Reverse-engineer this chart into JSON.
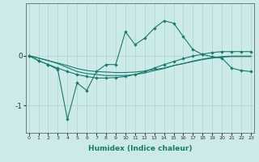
{
  "xlabel": "Humidex (Indice chaleur)",
  "background_color": "#cceae8",
  "line_color": "#1a7a6e",
  "grid_color": "#aad4d0",
  "x_values": [
    0,
    1,
    2,
    3,
    4,
    5,
    6,
    7,
    8,
    9,
    10,
    11,
    12,
    13,
    14,
    15,
    16,
    17,
    18,
    19,
    20,
    21,
    22,
    23
  ],
  "line1_y": [
    0.0,
    -0.1,
    -0.18,
    -0.28,
    -1.28,
    -0.55,
    -0.7,
    -0.32,
    -0.18,
    -0.18,
    0.48,
    0.22,
    0.35,
    0.55,
    0.7,
    0.65,
    0.38,
    0.12,
    0.02,
    -0.02,
    -0.05,
    -0.25,
    -0.3,
    -0.32
  ],
  "line2_y": [
    0.0,
    -0.1,
    -0.18,
    -0.25,
    -0.32,
    -0.38,
    -0.42,
    -0.45,
    -0.45,
    -0.44,
    -0.42,
    -0.38,
    -0.32,
    -0.25,
    -0.18,
    -0.12,
    -0.06,
    -0.01,
    0.03,
    0.06,
    0.08,
    0.08,
    0.08,
    0.08
  ],
  "line3_y": [
    0.0,
    -0.05,
    -0.1,
    -0.15,
    -0.2,
    -0.26,
    -0.3,
    -0.32,
    -0.33,
    -0.34,
    -0.34,
    -0.33,
    -0.31,
    -0.28,
    -0.25,
    -0.2,
    -0.16,
    -0.12,
    -0.08,
    -0.05,
    -0.03,
    -0.02,
    -0.02,
    -0.02
  ],
  "line4_y": [
    0.0,
    -0.05,
    -0.1,
    -0.16,
    -0.24,
    -0.32,
    -0.36,
    -0.38,
    -0.4,
    -0.4,
    -0.4,
    -0.38,
    -0.35,
    -0.3,
    -0.26,
    -0.2,
    -0.16,
    -0.11,
    -0.07,
    -0.04,
    -0.02,
    -0.01,
    -0.01,
    -0.01
  ],
  "ylim": [
    -1.55,
    1.05
  ],
  "yticks": [
    -1.0,
    0.0
  ],
  "xlim": [
    -0.3,
    23.3
  ],
  "figsize": [
    3.2,
    2.0
  ],
  "dpi": 100
}
